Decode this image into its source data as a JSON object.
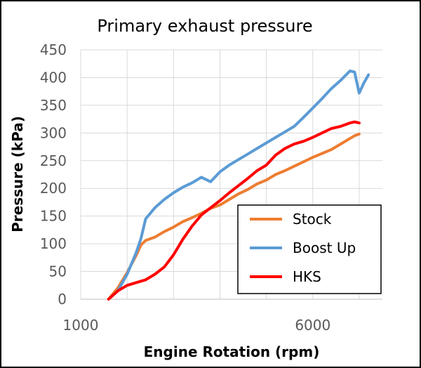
{
  "chart_data": {
    "type": "line",
    "title": "Primary exhaust pressure",
    "xlabel": "Engine Rotation (rpm)",
    "ylabel": "Pressure (kPa)",
    "xlim": [
      1000,
      7500
    ],
    "ylim": [
      0,
      450
    ],
    "x_ticks": [
      "1000",
      "6000"
    ],
    "x_tick_values": [
      1000,
      6000
    ],
    "y_ticks": [
      "0",
      "50",
      "100",
      "150",
      "200",
      "250",
      "300",
      "350",
      "400",
      "450"
    ],
    "grid": true,
    "legend_position": "bottom-right",
    "series": [
      {
        "name": "Stock",
        "color": "#ED7D31",
        "x": [
          1600,
          1800,
          2000,
          2200,
          2300,
          2400,
          2600,
          2800,
          3000,
          3200,
          3400,
          3600,
          3800,
          4000,
          4200,
          4400,
          4600,
          4800,
          5000,
          5200,
          5400,
          5600,
          5800,
          6000,
          6200,
          6400,
          6600,
          6800,
          6900,
          7000
        ],
        "y": [
          0,
          20,
          48,
          80,
          98,
          106,
          112,
          122,
          130,
          140,
          147,
          155,
          164,
          170,
          180,
          190,
          198,
          208,
          215,
          225,
          232,
          240,
          248,
          256,
          263,
          270,
          280,
          290,
          295,
          298
        ]
      },
      {
        "name": "Boost Up",
        "color": "#5B9BD5",
        "x": [
          1600,
          1800,
          2000,
          2200,
          2300,
          2400,
          2600,
          2800,
          3000,
          3200,
          3400,
          3600,
          3800,
          4000,
          4200,
          4400,
          4600,
          4800,
          5000,
          5200,
          5400,
          5600,
          5800,
          6000,
          6200,
          6400,
          6600,
          6800,
          6900,
          7000,
          7100,
          7200
        ],
        "y": [
          0,
          15,
          45,
          85,
          110,
          145,
          165,
          180,
          192,
          202,
          210,
          220,
          212,
          230,
          242,
          252,
          262,
          272,
          282,
          292,
          302,
          312,
          328,
          345,
          362,
          380,
          395,
          412,
          410,
          372,
          390,
          405
        ]
      },
      {
        "name": "HKS",
        "color": "#FF0000",
        "x": [
          1600,
          1800,
          2000,
          2200,
          2400,
          2600,
          2800,
          3000,
          3200,
          3400,
          3600,
          3800,
          4000,
          4200,
          4400,
          4600,
          4800,
          5000,
          5200,
          5400,
          5600,
          5800,
          6000,
          6200,
          6400,
          6600,
          6800,
          6900,
          7000
        ],
        "y": [
          0,
          15,
          25,
          30,
          35,
          45,
          58,
          80,
          108,
          132,
          152,
          165,
          178,
          192,
          205,
          218,
          232,
          242,
          260,
          272,
          280,
          285,
          292,
          300,
          308,
          312,
          318,
          320,
          318
        ]
      }
    ]
  }
}
